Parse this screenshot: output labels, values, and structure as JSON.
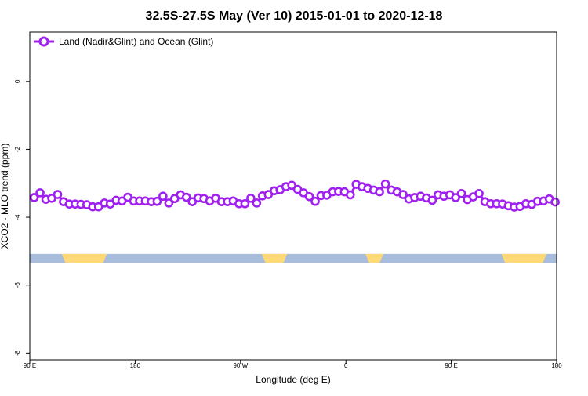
{
  "chart_data": {
    "type": "line",
    "title": "32.5S-27.5S May (Ver 10)   2015-01-01 to 2020-12-18",
    "xlabel": "Longitude (deg E)",
    "ylabel": "XCO2 - MLO trend (ppm)",
    "xlim": [
      90,
      450
    ],
    "ylim": [
      -8.2,
      1.45
    ],
    "x_ticks": [
      {
        "value": 90,
        "label": "90 E"
      },
      {
        "value": 162,
        "label": "180"
      },
      {
        "value": 234,
        "label": "90 W"
      },
      {
        "value": 306,
        "label": "0"
      },
      {
        "value": 378,
        "label": "90 E"
      },
      {
        "value": 450,
        "label": "180"
      }
    ],
    "y_ticks": [
      {
        "value": 0,
        "label": "0"
      },
      {
        "value": -2,
        "label": "-2"
      },
      {
        "value": -4,
        "label": "-4"
      },
      {
        "value": -6,
        "label": "-6"
      },
      {
        "value": -8,
        "label": "-8"
      }
    ],
    "grid": false,
    "legend": {
      "position": "top-left"
    },
    "colors": {
      "series": "#a020f0",
      "ocean": "#a8bcdc",
      "land": "#ffd878"
    },
    "land_ocean_band": {
      "y_range": [
        -5.35,
        -5.08
      ],
      "land_segments": [
        [
          111.8,
          142.7
        ],
        [
          248.5,
          265.9
        ],
        [
          319.3,
          331.6
        ],
        [
          412.2,
          443.1
        ]
      ]
    },
    "series": [
      {
        "name": "Land (Nadir&Glint) and Ocean (Glint)",
        "x": [
          93.0,
          97.0,
          101.0,
          105.0,
          109.0,
          113.0,
          117.0,
          121.0,
          125.0,
          129.0,
          133.0,
          137.0,
          141.0,
          145.0,
          149.0,
          153.0,
          157.0,
          161.0,
          165.0,
          169.0,
          173.0,
          177.0,
          181.0,
          185.0,
          189.0,
          193.0,
          197.0,
          201.0,
          205.0,
          209.0,
          213.0,
          217.0,
          221.0,
          225.0,
          229.0,
          233.0,
          237.0,
          241.0,
          245.0,
          249.0,
          253.0,
          257.0,
          261.0,
          265.0,
          269.0,
          273.0,
          277.0,
          281.0,
          285.0,
          289.0,
          293.0,
          297.0,
          301.0,
          305.0,
          309.0,
          313.0,
          317.0,
          321.0,
          325.0,
          329.0,
          333.0,
          337.0,
          341.0,
          345.0,
          349.0,
          353.0,
          357.0,
          361.0,
          365.0,
          369.0,
          373.0,
          377.0,
          381.0,
          385.0,
          389.0,
          393.0,
          397.0,
          401.0,
          405.0,
          409.0,
          413.0,
          417.0,
          421.0,
          425.0,
          429.0,
          433.0,
          437.0,
          441.0,
          445.0,
          449.0
        ],
        "y": [
          -3.42,
          -3.28,
          -3.47,
          -3.44,
          -3.33,
          -3.54,
          -3.61,
          -3.61,
          -3.62,
          -3.63,
          -3.69,
          -3.69,
          -3.58,
          -3.61,
          -3.5,
          -3.52,
          -3.41,
          -3.52,
          -3.52,
          -3.52,
          -3.54,
          -3.53,
          -3.38,
          -3.58,
          -3.45,
          -3.34,
          -3.41,
          -3.54,
          -3.43,
          -3.45,
          -3.52,
          -3.44,
          -3.54,
          -3.54,
          -3.52,
          -3.6,
          -3.6,
          -3.44,
          -3.58,
          -3.37,
          -3.33,
          -3.22,
          -3.19,
          -3.1,
          -3.06,
          -3.18,
          -3.28,
          -3.39,
          -3.53,
          -3.36,
          -3.35,
          -3.25,
          -3.24,
          -3.25,
          -3.34,
          -3.03,
          -3.1,
          -3.15,
          -3.2,
          -3.25,
          -3.02,
          -3.2,
          -3.25,
          -3.33,
          -3.46,
          -3.42,
          -3.38,
          -3.43,
          -3.5,
          -3.34,
          -3.38,
          -3.34,
          -3.42,
          -3.3,
          -3.48,
          -3.4,
          -3.3,
          -3.54,
          -3.6,
          -3.6,
          -3.61,
          -3.66,
          -3.7,
          -3.68,
          -3.6,
          -3.62,
          -3.53,
          -3.52,
          -3.46,
          -3.55
        ]
      }
    ]
  }
}
